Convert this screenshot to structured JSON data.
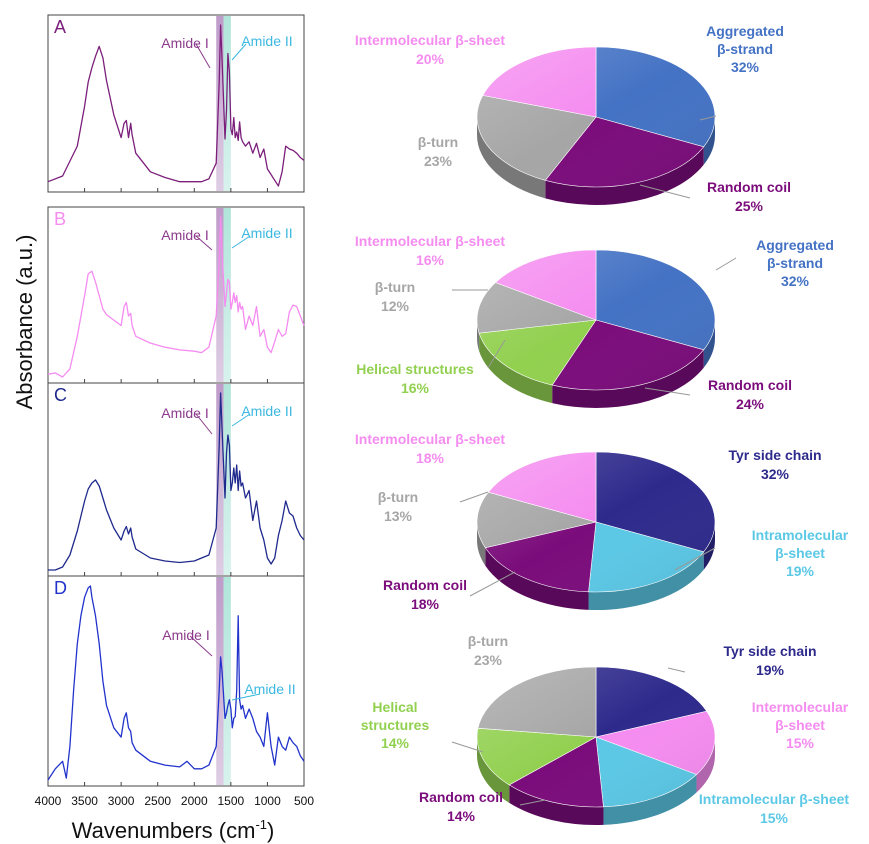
{
  "figure": {
    "ylabel": "Absorbance (a.u.)",
    "xlabel_main": "Wavenumbers (cm",
    "xlabel_sup": "-1",
    "xlabel_close": ")"
  },
  "colors": {
    "aggregated_beta_strand": "#4472C4",
    "random_coil": "#7B0C7B",
    "beta_turn": "#A6A6A6",
    "intermolecular_beta_sheet": "#F58CF0",
    "helical_structures": "#92D050",
    "tyr_side_chain": "#2E2A8C",
    "intramolecular_beta_sheet": "#5BC8E6",
    "amide_I_band": "#B790C4",
    "amide_II_band": "#A8E2D6"
  },
  "chart_data": [
    {
      "type": "line",
      "panel": "A",
      "color": "#7B1F7B",
      "x_ticks": [
        "4000",
        "3500",
        "3000",
        "2500",
        "2000",
        "1500",
        "1000",
        "500"
      ],
      "xlim": [
        4000,
        500
      ],
      "annotations": [
        "Amide I",
        "Amide II"
      ],
      "x": [
        4000,
        3800,
        3600,
        3500,
        3450,
        3400,
        3350,
        3300,
        3250,
        3200,
        3100,
        3000,
        2960,
        2930,
        2900,
        2870,
        2850,
        2800,
        2600,
        2400,
        2200,
        2000,
        1900,
        1800,
        1700,
        1660,
        1640,
        1620,
        1580,
        1560,
        1540,
        1520,
        1500,
        1480,
        1460,
        1440,
        1420,
        1400,
        1380,
        1360,
        1340,
        1300,
        1250,
        1200,
        1150,
        1100,
        1050,
        1000,
        950,
        900,
        850,
        800,
        750,
        700,
        650,
        600,
        550,
        500
      ],
      "y": [
        0.05,
        0.09,
        0.3,
        0.58,
        0.75,
        0.85,
        0.93,
        1.0,
        0.92,
        0.76,
        0.52,
        0.36,
        0.46,
        0.48,
        0.36,
        0.46,
        0.38,
        0.25,
        0.12,
        0.08,
        0.05,
        0.05,
        0.05,
        0.07,
        0.18,
        0.75,
        1.15,
        0.9,
        0.35,
        0.55,
        0.95,
        0.82,
        0.42,
        0.38,
        0.5,
        0.36,
        0.4,
        0.34,
        0.47,
        0.36,
        0.33,
        0.3,
        0.33,
        0.25,
        0.32,
        0.22,
        0.28,
        0.14,
        0.1,
        0.06,
        0.02,
        0.12,
        0.3,
        0.28,
        0.27,
        0.25,
        0.22,
        0.2
      ]
    },
    {
      "type": "line",
      "panel": "B",
      "color": "#F58CF0",
      "x_ticks": [
        "4000",
        "3500",
        "3000",
        "2500",
        "2000",
        "1500",
        "1000",
        "500"
      ],
      "xlim": [
        4000,
        500
      ],
      "annotations": [
        "Amide I",
        "Amide II"
      ],
      "x": [
        4000,
        3900,
        3800,
        3700,
        3600,
        3500,
        3450,
        3400,
        3350,
        3300,
        3250,
        3200,
        3100,
        3000,
        2960,
        2930,
        2900,
        2870,
        2850,
        2800,
        2600,
        2400,
        2200,
        2000,
        1900,
        1800,
        1700,
        1660,
        1640,
        1620,
        1580,
        1560,
        1540,
        1520,
        1500,
        1480,
        1460,
        1440,
        1420,
        1400,
        1380,
        1360,
        1340,
        1300,
        1250,
        1200,
        1150,
        1100,
        1050,
        1000,
        950,
        900,
        850,
        800,
        750,
        700,
        650,
        600,
        550,
        500
      ],
      "y": [
        0.02,
        0.03,
        0.0,
        0.06,
        0.3,
        0.6,
        0.76,
        0.78,
        0.7,
        0.6,
        0.5,
        0.46,
        0.42,
        0.38,
        0.52,
        0.55,
        0.45,
        0.47,
        0.38,
        0.3,
        0.25,
        0.22,
        0.2,
        0.19,
        0.18,
        0.22,
        0.45,
        0.85,
        1.18,
        0.9,
        0.52,
        0.62,
        0.72,
        0.7,
        0.5,
        0.55,
        0.62,
        0.55,
        0.6,
        0.48,
        0.55,
        0.5,
        0.52,
        0.35,
        0.45,
        0.38,
        0.52,
        0.3,
        0.35,
        0.22,
        0.18,
        0.26,
        0.35,
        0.3,
        0.32,
        0.48,
        0.53,
        0.52,
        0.45,
        0.38
      ]
    },
    {
      "type": "line",
      "panel": "C",
      "color": "#1F2A8C",
      "x_ticks": [
        "4000",
        "3500",
        "3000",
        "2500",
        "2000",
        "1500",
        "1000",
        "500"
      ],
      "xlim": [
        4000,
        500
      ],
      "annotations": [
        "Amide I",
        "Amide II"
      ],
      "x": [
        4000,
        3900,
        3800,
        3700,
        3600,
        3500,
        3450,
        3400,
        3350,
        3300,
        3250,
        3200,
        3100,
        3000,
        2960,
        2930,
        2900,
        2870,
        2850,
        2800,
        2600,
        2400,
        2200,
        2000,
        1900,
        1800,
        1700,
        1660,
        1640,
        1620,
        1580,
        1560,
        1540,
        1520,
        1500,
        1480,
        1460,
        1440,
        1420,
        1400,
        1380,
        1360,
        1340,
        1300,
        1250,
        1200,
        1150,
        1100,
        1050,
        1000,
        950,
        900,
        850,
        800,
        750,
        700,
        650,
        600,
        550,
        500
      ],
      "y": [
        0.02,
        0.02,
        0.04,
        0.12,
        0.28,
        0.48,
        0.56,
        0.6,
        0.62,
        0.58,
        0.5,
        0.42,
        0.3,
        0.22,
        0.28,
        0.31,
        0.26,
        0.3,
        0.24,
        0.16,
        0.1,
        0.08,
        0.07,
        0.08,
        0.1,
        0.12,
        0.3,
        0.85,
        1.2,
        0.95,
        0.5,
        0.8,
        0.92,
        0.85,
        0.55,
        0.6,
        0.7,
        0.6,
        0.72,
        0.55,
        0.68,
        0.58,
        0.6,
        0.5,
        0.55,
        0.35,
        0.48,
        0.3,
        0.22,
        0.1,
        0.06,
        0.1,
        0.25,
        0.35,
        0.48,
        0.4,
        0.38,
        0.3,
        0.25,
        0.22
      ]
    },
    {
      "type": "line",
      "panel": "D",
      "color": "#2233CC",
      "x_ticks": [
        "4000",
        "3500",
        "3000",
        "2500",
        "2000",
        "1500",
        "1000",
        "500"
      ],
      "xlim": [
        4000,
        500
      ],
      "annotations": [
        "Amide I",
        "Amide II"
      ],
      "x": [
        4000,
        3900,
        3800,
        3750,
        3700,
        3650,
        3600,
        3550,
        3500,
        3450,
        3420,
        3400,
        3350,
        3300,
        3250,
        3200,
        3100,
        3000,
        2960,
        2930,
        2900,
        2870,
        2850,
        2800,
        2600,
        2400,
        2200,
        2100,
        2000,
        1900,
        1800,
        1700,
        1660,
        1640,
        1620,
        1580,
        1560,
        1540,
        1520,
        1500,
        1480,
        1460,
        1440,
        1420,
        1400,
        1380,
        1360,
        1340,
        1300,
        1250,
        1200,
        1150,
        1100,
        1050,
        1000,
        950,
        900,
        850,
        800,
        750,
        700,
        650,
        600,
        550,
        500
      ],
      "y": [
        0.02,
        0.08,
        0.12,
        0.03,
        0.2,
        0.5,
        0.75,
        0.9,
        1.0,
        1.05,
        1.06,
        1.0,
        0.9,
        0.75,
        0.55,
        0.42,
        0.3,
        0.25,
        0.35,
        0.38,
        0.3,
        0.28,
        0.22,
        0.18,
        0.12,
        0.1,
        0.09,
        0.12,
        0.08,
        0.08,
        0.1,
        0.2,
        0.5,
        0.68,
        0.6,
        0.35,
        0.38,
        0.42,
        0.45,
        0.4,
        0.3,
        0.35,
        0.36,
        0.5,
        0.9,
        0.45,
        0.4,
        0.42,
        0.35,
        0.4,
        0.35,
        0.28,
        0.25,
        0.2,
        0.38,
        0.2,
        0.1,
        0.25,
        0.2,
        0.18,
        0.25,
        0.22,
        0.2,
        0.15,
        0.12
      ]
    },
    {
      "type": "pie",
      "panel": "A",
      "slices": [
        {
          "label": "Aggregated β-strand",
          "value": 32,
          "pct": "32%",
          "color": "#4472C4"
        },
        {
          "label": "Random coil",
          "value": 25,
          "pct": "25%",
          "color": "#7B0C7B"
        },
        {
          "label": "β-turn",
          "value": 23,
          "pct": "23%",
          "color": "#A6A6A6"
        },
        {
          "label": "Intermolecular β-sheet",
          "value": 20,
          "pct": "20%",
          "color": "#F58CF0"
        }
      ]
    },
    {
      "type": "pie",
      "panel": "B",
      "slices": [
        {
          "label": "Aggregated β-strand",
          "value": 32,
          "pct": "32%",
          "color": "#4472C4"
        },
        {
          "label": "Random coil",
          "value": 24,
          "pct": "24%",
          "color": "#7B0C7B"
        },
        {
          "label": "Helical structures",
          "value": 16,
          "pct": "16%",
          "color": "#92D050"
        },
        {
          "label": "β-turn",
          "value": 12,
          "pct": "12%",
          "color": "#A6A6A6"
        },
        {
          "label": "Intermolecular β-sheet",
          "value": 16,
          "pct": "16%",
          "color": "#F58CF0"
        }
      ]
    },
    {
      "type": "pie",
      "panel": "C",
      "slices": [
        {
          "label": "Tyr side chain",
          "value": 32,
          "pct": "32%",
          "color": "#2E2A8C"
        },
        {
          "label": "Intramolecular β-sheet",
          "value": 19,
          "pct": "19%",
          "color": "#5BC8E6"
        },
        {
          "label": "Random coil",
          "value": 18,
          "pct": "18%",
          "color": "#7B0C7B"
        },
        {
          "label": "β-turn",
          "value": 13,
          "pct": "13%",
          "color": "#A6A6A6"
        },
        {
          "label": "Intermolecular β-sheet",
          "value": 18,
          "pct": "18%",
          "color": "#F58CF0"
        }
      ]
    },
    {
      "type": "pie",
      "panel": "D",
      "slices": [
        {
          "label": "Tyr side chain",
          "value": 19,
          "pct": "19%",
          "color": "#2E2A8C"
        },
        {
          "label": "Intermolecular β-sheet",
          "value": 15,
          "pct": "15%",
          "color": "#F58CF0"
        },
        {
          "label": "Intramolecular β-sheet",
          "value": 15,
          "pct": "15%",
          "color": "#5BC8E6"
        },
        {
          "label": "Random coil",
          "value": 14,
          "pct": "14%",
          "color": "#7B0C7B"
        },
        {
          "label": "Helical structures",
          "value": 14,
          "pct": "14%",
          "color": "#92D050"
        },
        {
          "label": "β-turn",
          "value": 23,
          "pct": "23%",
          "color": "#A6A6A6"
        }
      ]
    }
  ]
}
